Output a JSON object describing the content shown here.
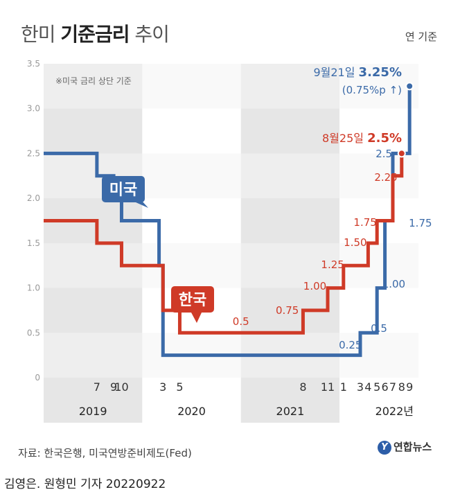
{
  "title": {
    "normal_1": "한미 ",
    "bold": "기준금리",
    "normal_2": " 추이"
  },
  "unit": "연 기준",
  "footer": {
    "source": "자료: 한국은행, 미국연방준비제도(Fed)",
    "brand": "연합뉴스",
    "credit": "김영은. 원형민 기자  20220922"
  },
  "chart_data": {
    "type": "line",
    "step": true,
    "title": "한미 기준금리 추이",
    "ylabel": "연 기준",
    "ylim": [
      0,
      3.5
    ],
    "yticks": [
      "0",
      "0.5",
      "1.0",
      "1.5",
      "2.0",
      "2.5",
      "3.0",
      "3.5"
    ],
    "note": "※미국 금리 상단 기준",
    "years": [
      "2019",
      "2020",
      "2021",
      "2022년"
    ],
    "month_ticks": [
      {
        "label": "7",
        "date": 2019.54
      },
      {
        "label": "9",
        "date": 2019.71
      },
      {
        "label": "10",
        "date": 2019.79
      },
      {
        "label": "3",
        "date": 2020.21
      },
      {
        "label": "5",
        "date": 2020.38
      },
      {
        "label": "8",
        "date": 2021.63
      },
      {
        "label": "11",
        "date": 2021.88
      },
      {
        "label": "1",
        "date": 2022.04
      },
      {
        "label": "3",
        "date": 2022.21
      },
      {
        "label": "4",
        "date": 2022.29
      },
      {
        "label": "5",
        "date": 2022.38
      },
      {
        "label": "6",
        "date": 2022.46
      },
      {
        "label": "7",
        "date": 2022.54
      },
      {
        "label": "8",
        "date": 2022.63
      },
      {
        "label": "9",
        "date": 2022.71
      }
    ],
    "series": [
      {
        "name": "미국",
        "color": "#3b6aa8",
        "points": [
          {
            "x": 2019.0,
            "y": 2.5
          },
          {
            "x": 2019.54,
            "y": 2.25
          },
          {
            "x": 2019.71,
            "y": 2.0
          },
          {
            "x": 2019.79,
            "y": 1.75
          },
          {
            "x": 2020.17,
            "y": 1.25
          },
          {
            "x": 2020.21,
            "y": 0.25
          },
          {
            "x": 2022.21,
            "y": 0.5
          },
          {
            "x": 2022.38,
            "y": 1.0
          },
          {
            "x": 2022.46,
            "y": 1.75
          },
          {
            "x": 2022.54,
            "y": 2.5
          },
          {
            "x": 2022.71,
            "y": 3.25
          }
        ],
        "labels": [
          "0.25",
          "0.5",
          "1.00",
          "1.75",
          "2.5"
        ],
        "end_label": {
          "date": "9월21일",
          "value": "3.25%",
          "change": "(0.75%p ↑)"
        }
      },
      {
        "name": "한국",
        "color": "#cf3a27",
        "points": [
          {
            "x": 2019.0,
            "y": 1.75
          },
          {
            "x": 2019.54,
            "y": 1.5
          },
          {
            "x": 2019.79,
            "y": 1.25
          },
          {
            "x": 2020.21,
            "y": 0.75
          },
          {
            "x": 2020.38,
            "y": 0.5
          },
          {
            "x": 2021.63,
            "y": 0.75
          },
          {
            "x": 2021.88,
            "y": 1.0
          },
          {
            "x": 2022.04,
            "y": 1.25
          },
          {
            "x": 2022.29,
            "y": 1.5
          },
          {
            "x": 2022.38,
            "y": 1.75
          },
          {
            "x": 2022.54,
            "y": 2.25
          },
          {
            "x": 2022.63,
            "y": 2.5
          }
        ],
        "labels": [
          "0.5",
          "0.75",
          "1.00",
          "1.25",
          "1.50",
          "1.75",
          "2.25"
        ],
        "end_label": {
          "date": "8월25일",
          "value": "2.5%"
        }
      }
    ]
  }
}
